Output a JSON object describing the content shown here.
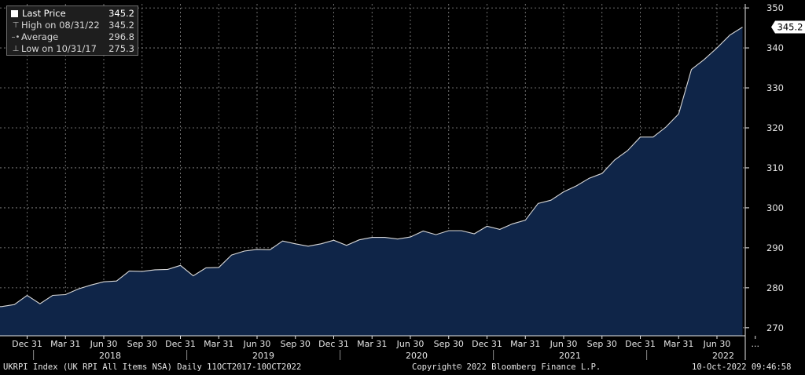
{
  "legend": {
    "last_price_label": "Last Price",
    "last_price_value": "345.2",
    "high_label": "High on 08/31/22",
    "high_value": "345.2",
    "average_label": "Average",
    "average_value": "296.8",
    "low_label": "Low on 10/31/17",
    "low_value": "275.3"
  },
  "footer": {
    "left": "UKRPI Index (UK RPI All Items NSA)  Daily 11OCT2017-10OCT2022",
    "center": "Copyright© 2022 Bloomberg Finance L.P.",
    "right": "10-Oct-2022 09:46:58"
  },
  "colors": {
    "background": "#000000",
    "area_fill": "#0f2548",
    "line": "#d8d8d8",
    "grid": "#8c8c8c",
    "text": "#e6e6e6",
    "last_price_tag": "#ffffff"
  },
  "chart_data": {
    "type": "area",
    "series": [
      {
        "name": "Last Price",
        "x": [
          "2017-10",
          "2017-11",
          "2017-12",
          "2018-01",
          "2018-02",
          "2018-03",
          "2018-04",
          "2018-05",
          "2018-06",
          "2018-07",
          "2018-08",
          "2018-09",
          "2018-10",
          "2018-11",
          "2018-12",
          "2019-01",
          "2019-02",
          "2019-03",
          "2019-04",
          "2019-05",
          "2019-06",
          "2019-07",
          "2019-08",
          "2019-09",
          "2019-10",
          "2019-11",
          "2019-12",
          "2020-01",
          "2020-02",
          "2020-03",
          "2020-04",
          "2020-05",
          "2020-06",
          "2020-07",
          "2020-08",
          "2020-09",
          "2020-10",
          "2020-11",
          "2020-12",
          "2021-01",
          "2021-02",
          "2021-03",
          "2021-04",
          "2021-05",
          "2021-06",
          "2021-07",
          "2021-08",
          "2021-09",
          "2021-10",
          "2021-11",
          "2021-12",
          "2022-01",
          "2022-02",
          "2022-03",
          "2022-04",
          "2022-05",
          "2022-06",
          "2022-07",
          "2022-08"
        ],
        "values": [
          275.3,
          275.8,
          278.1,
          276.0,
          278.1,
          278.3,
          279.7,
          280.7,
          281.5,
          281.7,
          284.2,
          284.1,
          284.5,
          284.6,
          285.6,
          283.0,
          285.0,
          285.1,
          288.2,
          289.2,
          289.6,
          289.5,
          291.7,
          291.0,
          290.4,
          291.0,
          291.9,
          290.6,
          292.0,
          292.6,
          292.6,
          292.2,
          292.7,
          294.2,
          293.3,
          294.3,
          294.3,
          293.5,
          295.4,
          294.6,
          296.0,
          296.9,
          301.1,
          301.9,
          304.0,
          305.5,
          307.4,
          308.6,
          312.0,
          314.3,
          317.7,
          317.7,
          320.2,
          323.5,
          334.6,
          337.1,
          340.0,
          343.2,
          345.2
        ]
      }
    ],
    "ylim": [
      268,
      351
    ],
    "yticks": [
      270,
      280,
      290,
      300,
      310,
      320,
      330,
      340,
      350
    ],
    "x_tick_labels": [
      {
        "x": "2017-12",
        "label": "Dec 31"
      },
      {
        "x": "2018-03",
        "label": "Mar 31"
      },
      {
        "x": "2018-06",
        "label": "Jun 30"
      },
      {
        "x": "2018-09",
        "label": "Sep 30"
      },
      {
        "x": "2018-12",
        "label": "Dec 31"
      },
      {
        "x": "2019-03",
        "label": "Mar 31"
      },
      {
        "x": "2019-06",
        "label": "Jun 30"
      },
      {
        "x": "2019-09",
        "label": "Sep 30"
      },
      {
        "x": "2019-12",
        "label": "Dec 31"
      },
      {
        "x": "2020-03",
        "label": "Mar 31"
      },
      {
        "x": "2020-06",
        "label": "Jun 30"
      },
      {
        "x": "2020-09",
        "label": "Sep 30"
      },
      {
        "x": "2020-12",
        "label": "Dec 31"
      },
      {
        "x": "2021-03",
        "label": "Mar 31"
      },
      {
        "x": "2021-06",
        "label": "Jun 30"
      },
      {
        "x": "2021-09",
        "label": "Sep 30"
      },
      {
        "x": "2021-12",
        "label": "Dec 31"
      },
      {
        "x": "2022-03",
        "label": "Mar 31"
      },
      {
        "x": "2022-06",
        "label": "Jun 30"
      },
      {
        "x": "2022-09",
        "label": "..."
      }
    ],
    "year_labels": [
      {
        "x": "2018-06",
        "label": "2018"
      },
      {
        "x": "2019-06",
        "label": "2019"
      },
      {
        "x": "2020-06",
        "label": "2020"
      },
      {
        "x": "2021-06",
        "label": "2021"
      },
      {
        "x": "2022-06",
        "label": "2022"
      }
    ],
    "last_price_tag": "345.2",
    "grid": true,
    "legend_position": "top-left",
    "y_axis_position": "right"
  }
}
